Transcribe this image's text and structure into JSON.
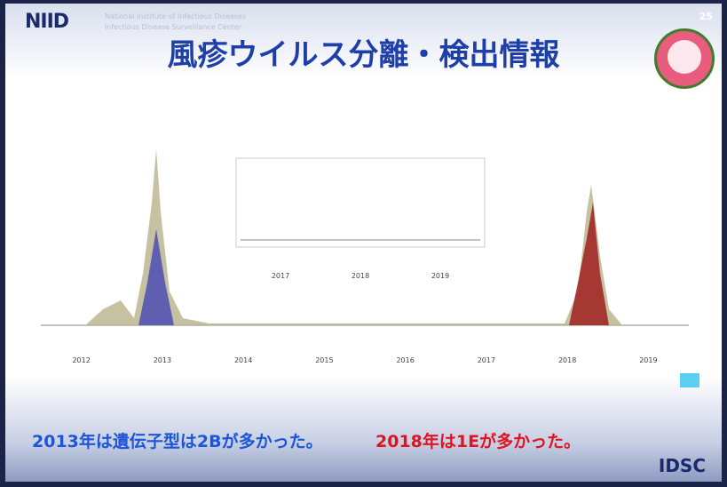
{
  "header": {
    "logo": "NIID",
    "institute": "National Institute of Infectious Diseases",
    "center": "Infectious Disease Surveillance Center",
    "page_number": "25",
    "title": "風疹ウイルス分離・検出情報"
  },
  "figure": {
    "years": [
      "2012",
      "2013",
      "2014",
      "2015",
      "2016",
      "2017",
      "2018",
      "2019"
    ],
    "inset_years": [
      "2017",
      "2018",
      "2019"
    ]
  },
  "conclusion": {
    "part1": "2013年は遺伝子型は2Bが多かった。",
    "part2": "2018年は1Eが多かった。"
  },
  "footer": {
    "logo": "IDSC"
  }
}
